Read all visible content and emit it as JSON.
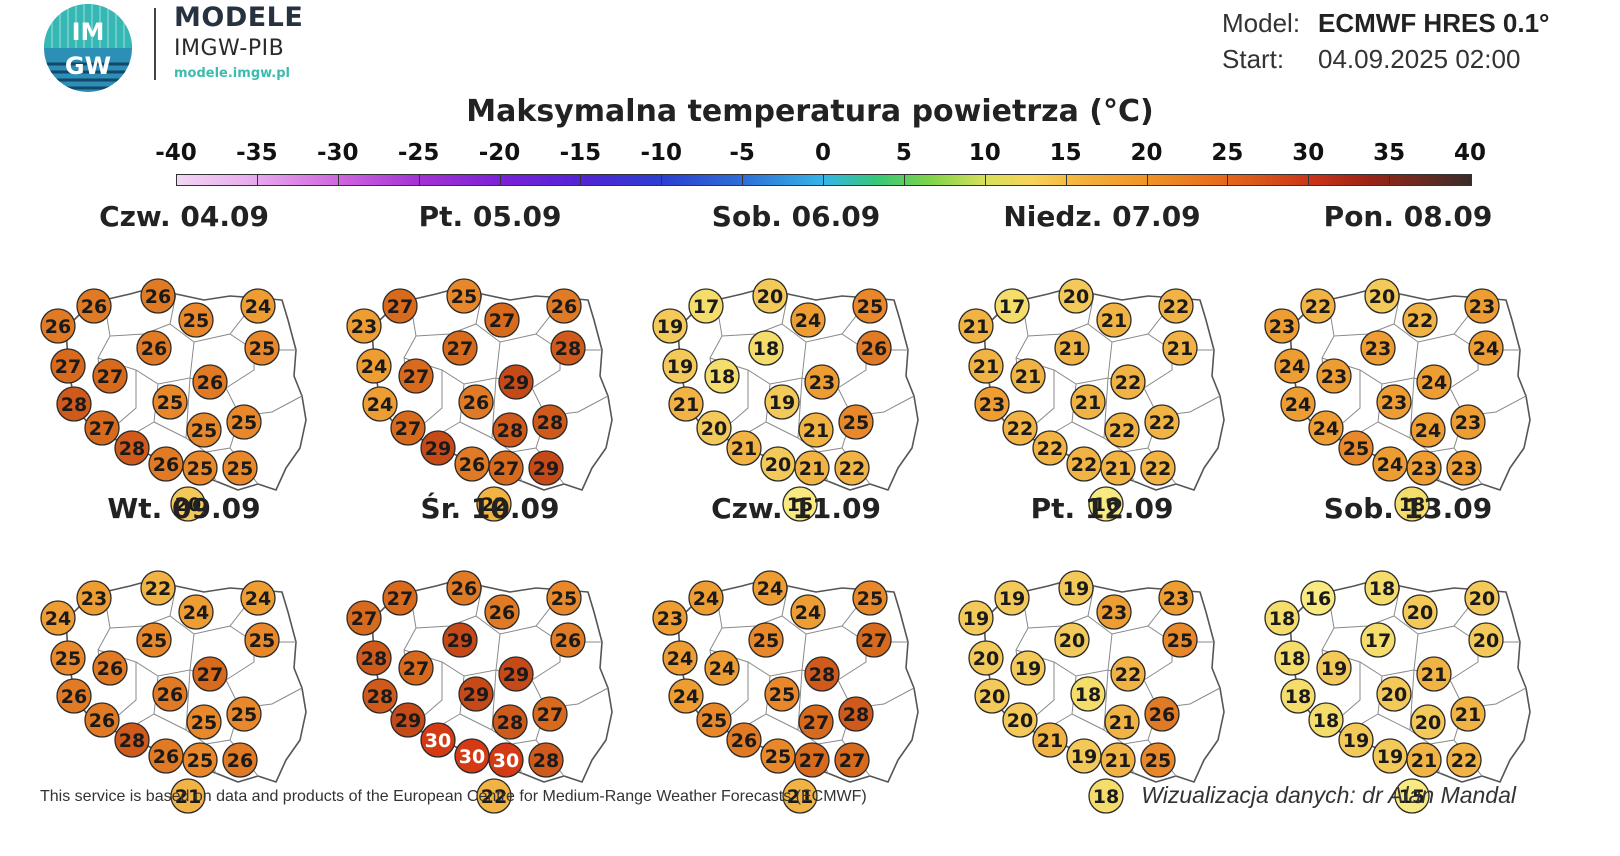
{
  "logo": {
    "text": "IMGW",
    "icon": "imgw-logo-icon",
    "colors": [
      "#2a8fb8",
      "#3cbcb0",
      "#16466b"
    ]
  },
  "brand": {
    "title": "MODELE",
    "subtitle": "IMGW-PIB",
    "url": "modele.imgw.pl"
  },
  "meta": {
    "model_label": "Model:",
    "model_value": "ECMWF HRES 0.1°",
    "start_label": "Start:",
    "start_value": "04.09.2025 02:00"
  },
  "title": "Maksymalna temperatura powietrza (°C)",
  "scale": {
    "ticks": [
      "-40",
      "-35",
      "-30",
      "-25",
      "-20",
      "-15",
      "-10",
      "-5",
      "0",
      "5",
      "10",
      "15",
      "20",
      "25",
      "30",
      "35",
      "40"
    ],
    "min": -40,
    "max": 40
  },
  "days": [
    {
      "label": "Czw. 04.09",
      "temps": [
        26,
        26,
        26,
        25,
        24,
        27,
        27,
        26,
        25,
        28,
        25,
        26,
        27,
        25,
        25,
        28,
        26,
        25,
        25,
        20
      ]
    },
    {
      "label": "Pt. 05.09",
      "temps": [
        23,
        27,
        25,
        27,
        26,
        24,
        27,
        27,
        28,
        24,
        26,
        29,
        27,
        28,
        28,
        29,
        26,
        27,
        29,
        22
      ]
    },
    {
      "label": "Sob. 06.09",
      "temps": [
        19,
        17,
        20,
        24,
        25,
        19,
        18,
        18,
        26,
        21,
        19,
        23,
        20,
        21,
        25,
        21,
        20,
        21,
        22,
        15
      ]
    },
    {
      "label": "Niedz. 07.09",
      "temps": [
        21,
        17,
        20,
        21,
        22,
        21,
        21,
        21,
        21,
        23,
        21,
        22,
        22,
        22,
        22,
        22,
        22,
        21,
        22,
        16
      ]
    },
    {
      "label": "Pon. 08.09",
      "temps": [
        23,
        22,
        20,
        22,
        23,
        24,
        23,
        23,
        24,
        24,
        23,
        24,
        24,
        24,
        23,
        25,
        24,
        23,
        23,
        18
      ]
    },
    {
      "label": "Wt. 09.09",
      "temps": [
        24,
        23,
        22,
        24,
        24,
        25,
        26,
        25,
        25,
        26,
        26,
        27,
        26,
        25,
        25,
        28,
        26,
        25,
        26,
        21
      ]
    },
    {
      "label": "Śr. 10.09",
      "temps": [
        27,
        27,
        26,
        26,
        25,
        28,
        27,
        29,
        26,
        28,
        29,
        29,
        29,
        28,
        27,
        30,
        30,
        30,
        28,
        22
      ]
    },
    {
      "label": "Czw. 11.09",
      "temps": [
        23,
        24,
        24,
        24,
        25,
        24,
        24,
        25,
        27,
        24,
        25,
        28,
        25,
        27,
        28,
        26,
        25,
        27,
        27,
        21
      ]
    },
    {
      "label": "Pt. 12.09",
      "temps": [
        19,
        19,
        19,
        23,
        23,
        20,
        19,
        20,
        25,
        20,
        18,
        22,
        20,
        21,
        26,
        21,
        19,
        21,
        25,
        18
      ]
    },
    {
      "label": "Sob. 13.09",
      "temps": [
        18,
        16,
        18,
        20,
        20,
        18,
        19,
        17,
        20,
        18,
        20,
        21,
        18,
        20,
        21,
        19,
        19,
        21,
        22,
        15
      ]
    }
  ],
  "footer": {
    "left": "This service is based on data and products of the European Centre for Medium-Range Weather Forecasts (ECMWF)",
    "right": "Wizualizacja danych: dr Alan Mandal"
  }
}
